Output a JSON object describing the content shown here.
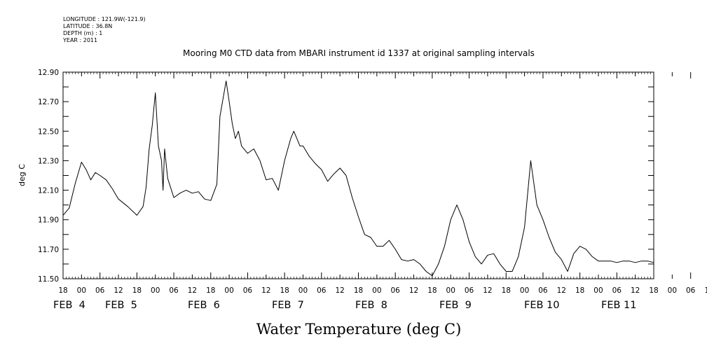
{
  "header": {
    "longitude": "LONGITUDE : 121.9W(-121.9)",
    "latitude": "LATITUDE : 36.8N",
    "depth": "DEPTH (m) : 1",
    "year": "YEAR : 2011"
  },
  "chart_data": {
    "type": "line",
    "title": "Mooring M0 CTD data from MBARI instrument id 1337 at original sampling intervals",
    "xlabel": "Water Temperature (deg C)",
    "ylabel": "deg C",
    "ylim": [
      11.5,
      12.9
    ],
    "yticks": [
      "11.50",
      "11.70",
      "11.90",
      "12.10",
      "12.30",
      "12.50",
      "12.70",
      "12.90"
    ],
    "hour_ticks": [
      "18",
      "00",
      "06",
      "12",
      "18",
      "00",
      "06",
      "12",
      "18",
      "00",
      "06",
      "12",
      "18",
      "00",
      "06",
      "12",
      "18",
      "00",
      "06",
      "12",
      "18",
      "00",
      "06",
      "12",
      "18",
      "00",
      "06",
      "12",
      "18",
      "00",
      "06",
      "12",
      "18",
      "00",
      "06",
      "12",
      "18",
      "00",
      "06",
      "12",
      "18",
      "00",
      "06",
      "12",
      "18"
    ],
    "day_labels": [
      "FEB  4",
      "FEB  5",
      "FEB  6",
      "FEB  7",
      "FEB  8",
      "FEB  9",
      "FEB 10",
      "FEB 11"
    ],
    "xlim": [
      "2011-02-03T18:00",
      "2011-02-11T18:00"
    ],
    "grid": false,
    "series": [
      {
        "color": "#000000",
        "x": [
          "2011-02-03T18:00",
          "2011-02-03T20:00",
          "2011-02-03T22:00",
          "2011-02-04T00:00",
          "2011-02-04T01:30",
          "2011-02-04T03:00",
          "2011-02-04T04:30",
          "2011-02-04T06:00",
          "2011-02-04T08:00",
          "2011-02-04T10:00",
          "2011-02-04T12:00",
          "2011-02-04T15:00",
          "2011-02-04T18:00",
          "2011-02-04T20:00",
          "2011-02-04T21:00",
          "2011-02-04T22:00",
          "2011-02-04T23:00",
          "2011-02-05T00:00",
          "2011-02-05T01:00",
          "2011-02-05T02:00",
          "2011-02-05T02:30",
          "2011-02-05T03:00",
          "2011-02-05T04:00",
          "2011-02-05T06:00",
          "2011-02-05T08:00",
          "2011-02-05T10:00",
          "2011-02-05T12:00",
          "2011-02-05T14:00",
          "2011-02-05T16:00",
          "2011-02-05T18:00",
          "2011-02-05T20:00",
          "2011-02-05T21:00",
          "2011-02-05T22:00",
          "2011-02-05T23:00",
          "2011-02-06T00:00",
          "2011-02-06T01:00",
          "2011-02-06T02:00",
          "2011-02-06T03:00",
          "2011-02-06T04:00",
          "2011-02-06T06:00",
          "2011-02-06T08:00",
          "2011-02-06T10:00",
          "2011-02-06T12:00",
          "2011-02-06T14:00",
          "2011-02-06T16:00",
          "2011-02-06T18:00",
          "2011-02-06T20:00",
          "2011-02-06T21:00",
          "2011-02-06T22:00",
          "2011-02-06T23:00",
          "2011-02-07T00:00",
          "2011-02-07T02:00",
          "2011-02-07T04:00",
          "2011-02-07T06:00",
          "2011-02-07T08:00",
          "2011-02-07T10:00",
          "2011-02-07T12:00",
          "2011-02-07T14:00",
          "2011-02-07T16:00",
          "2011-02-07T18:00",
          "2011-02-07T20:00",
          "2011-02-07T22:00",
          "2011-02-08T00:00",
          "2011-02-08T02:00",
          "2011-02-08T04:00",
          "2011-02-08T06:00",
          "2011-02-08T08:00",
          "2011-02-08T10:00",
          "2011-02-08T12:00",
          "2011-02-08T14:00",
          "2011-02-08T16:00",
          "2011-02-08T18:00",
          "2011-02-08T20:00",
          "2011-02-08T22:00",
          "2011-02-09T00:00",
          "2011-02-09T02:00",
          "2011-02-09T04:00",
          "2011-02-09T06:00",
          "2011-02-09T08:00",
          "2011-02-09T10:00",
          "2011-02-09T12:00",
          "2011-02-09T14:00",
          "2011-02-09T16:00",
          "2011-02-09T18:00",
          "2011-02-09T20:00",
          "2011-02-09T22:00",
          "2011-02-10T00:00",
          "2011-02-10T02:00",
          "2011-02-10T04:00",
          "2011-02-10T06:00",
          "2011-02-10T08:00",
          "2011-02-10T10:00",
          "2011-02-10T12:00",
          "2011-02-10T14:00",
          "2011-02-10T16:00",
          "2011-02-10T18:00",
          "2011-02-10T20:00",
          "2011-02-10T22:00",
          "2011-02-11T00:00",
          "2011-02-11T02:00",
          "2011-02-11T04:00",
          "2011-02-11T06:00",
          "2011-02-11T08:00",
          "2011-02-11T10:00",
          "2011-02-11T12:00",
          "2011-02-11T14:00",
          "2011-02-11T16:00",
          "2011-02-11T18:00"
        ],
        "values": [
          11.93,
          11.98,
          12.15,
          12.29,
          12.24,
          12.17,
          12.22,
          12.2,
          12.17,
          12.11,
          12.04,
          11.99,
          11.93,
          11.99,
          12.12,
          12.38,
          12.54,
          12.76,
          12.4,
          12.3,
          12.1,
          12.38,
          12.18,
          12.05,
          12.08,
          12.1,
          12.08,
          12.09,
          12.04,
          12.03,
          12.14,
          12.6,
          12.72,
          12.84,
          12.7,
          12.55,
          12.45,
          12.5,
          12.4,
          12.35,
          12.38,
          12.3,
          12.17,
          12.18,
          12.1,
          12.3,
          12.45,
          12.5,
          12.45,
          12.4,
          12.4,
          12.33,
          12.28,
          12.24,
          12.16,
          12.21,
          12.25,
          12.2,
          12.05,
          11.92,
          11.8,
          11.78,
          11.72,
          11.72,
          11.76,
          11.7,
          11.63,
          11.62,
          11.63,
          11.6,
          11.55,
          11.52,
          11.6,
          11.72,
          11.9,
          12.0,
          11.9,
          11.75,
          11.65,
          11.6,
          11.66,
          11.67,
          11.6,
          11.55,
          11.55,
          11.65,
          11.85,
          12.3,
          12.0,
          11.9,
          11.78,
          11.68,
          11.63,
          11.55,
          11.67,
          11.72,
          11.7,
          11.65,
          11.62,
          11.62,
          11.62,
          11.61,
          11.62,
          11.62,
          11.61,
          11.62,
          11.62,
          11.61
        ]
      }
    ]
  }
}
